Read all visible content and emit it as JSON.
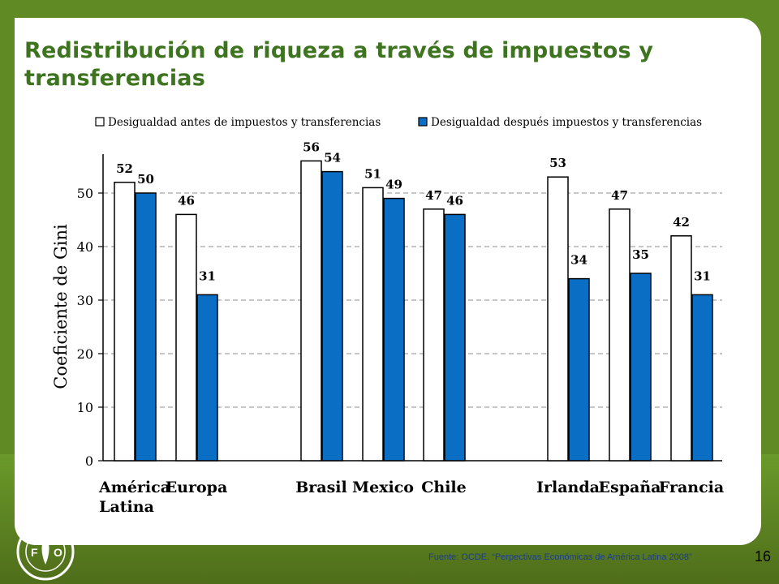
{
  "slide": {
    "title": "Redistribución de riqueza a través de impuestos y transferencias",
    "source": "Fuente: OCDE. “Perpectivas Económicas de América Latina 2008”",
    "page_number": "16",
    "logo_text": "FAO",
    "logo_motto": "FIAT PANIS"
  },
  "colors": {
    "title": "#3e7420",
    "series_before": "#ffffff",
    "series_after": "#0a6ec4",
    "background": "#5f8a24"
  },
  "chart_data": {
    "type": "bar",
    "ylabel": "Coeficiente de Gini",
    "xlabel": "",
    "ylim": [
      0,
      57
    ],
    "yticks": [
      0,
      10,
      20,
      30,
      40,
      50
    ],
    "legend_position": "top",
    "grid": "dashed horizontal",
    "groups": [
      {
        "label_lines": [
          "América",
          "Latina"
        ],
        "before": 52,
        "after": 50,
        "before_label": "52",
        "after_label": "50"
      },
      {
        "label_lines": [
          "Europa"
        ],
        "before": 46,
        "after": 31,
        "before_label": "46",
        "after_label": "31"
      },
      {
        "label_lines": [
          "Brasil"
        ],
        "before": 56,
        "after": 54,
        "before_label": "56",
        "after_label": "54"
      },
      {
        "label_lines": [
          "Mexico"
        ],
        "before": 51,
        "after": 49,
        "before_label": "51",
        "after_label": "49"
      },
      {
        "label_lines": [
          "Chile"
        ],
        "before": 47,
        "after": 46,
        "before_label": "47",
        "after_label": "46"
      },
      {
        "label_lines": [
          "Irlanda"
        ],
        "before": 53,
        "after": 34,
        "before_label": "53",
        "after_label": "34"
      },
      {
        "label_lines": [
          "España"
        ],
        "before": 47,
        "after": 35,
        "before_label": "47",
        "after_label": "35"
      },
      {
        "label_lines": [
          "Francia"
        ],
        "before": 42,
        "after": 31,
        "before_label": "42",
        "after_label": "31"
      }
    ],
    "series": [
      {
        "name": "Desigualdad antes de impuestos y transferencias",
        "key": "before",
        "color": "#ffffff"
      },
      {
        "name": "Desigualdad después impuestos y transferencias",
        "key": "after",
        "color": "#0a6ec4"
      }
    ]
  }
}
